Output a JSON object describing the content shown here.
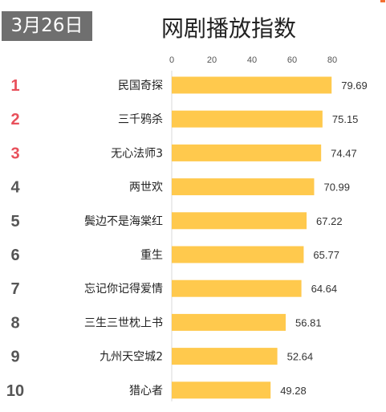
{
  "header": {
    "date": "3月26日",
    "title": "网剧播放指数"
  },
  "colors": {
    "bar": "#FFC94D",
    "rank_top": "#E8505B",
    "rank_other": "#555555",
    "badge": "#6F6F6F",
    "accent": "#F36F32"
  },
  "chart_data": {
    "type": "bar",
    "orientation": "horizontal",
    "xlim": [
      0,
      80
    ],
    "ticks": [
      0,
      20,
      40,
      60,
      80
    ],
    "grid": false,
    "legend": "none",
    "ranks": [
      "1",
      "2",
      "3",
      "4",
      "5",
      "6",
      "7",
      "8",
      "9",
      "10"
    ],
    "categories": [
      "民国奇探",
      "三千鸦杀",
      "无心法师3",
      "两世欢",
      "鬓边不是海棠红",
      "重生",
      "忘记你记得爱情",
      "三生三世枕上书",
      "九州天空城2",
      "猎心者"
    ],
    "values": [
      79.69,
      75.15,
      74.47,
      70.99,
      67.22,
      65.77,
      64.64,
      56.81,
      52.64,
      49.28
    ],
    "value_labels": [
      "79.69",
      "75.15",
      "74.47",
      "70.99",
      "67.22",
      "65.77",
      "64.64",
      "56.81",
      "52.64",
      "49.28"
    ]
  }
}
